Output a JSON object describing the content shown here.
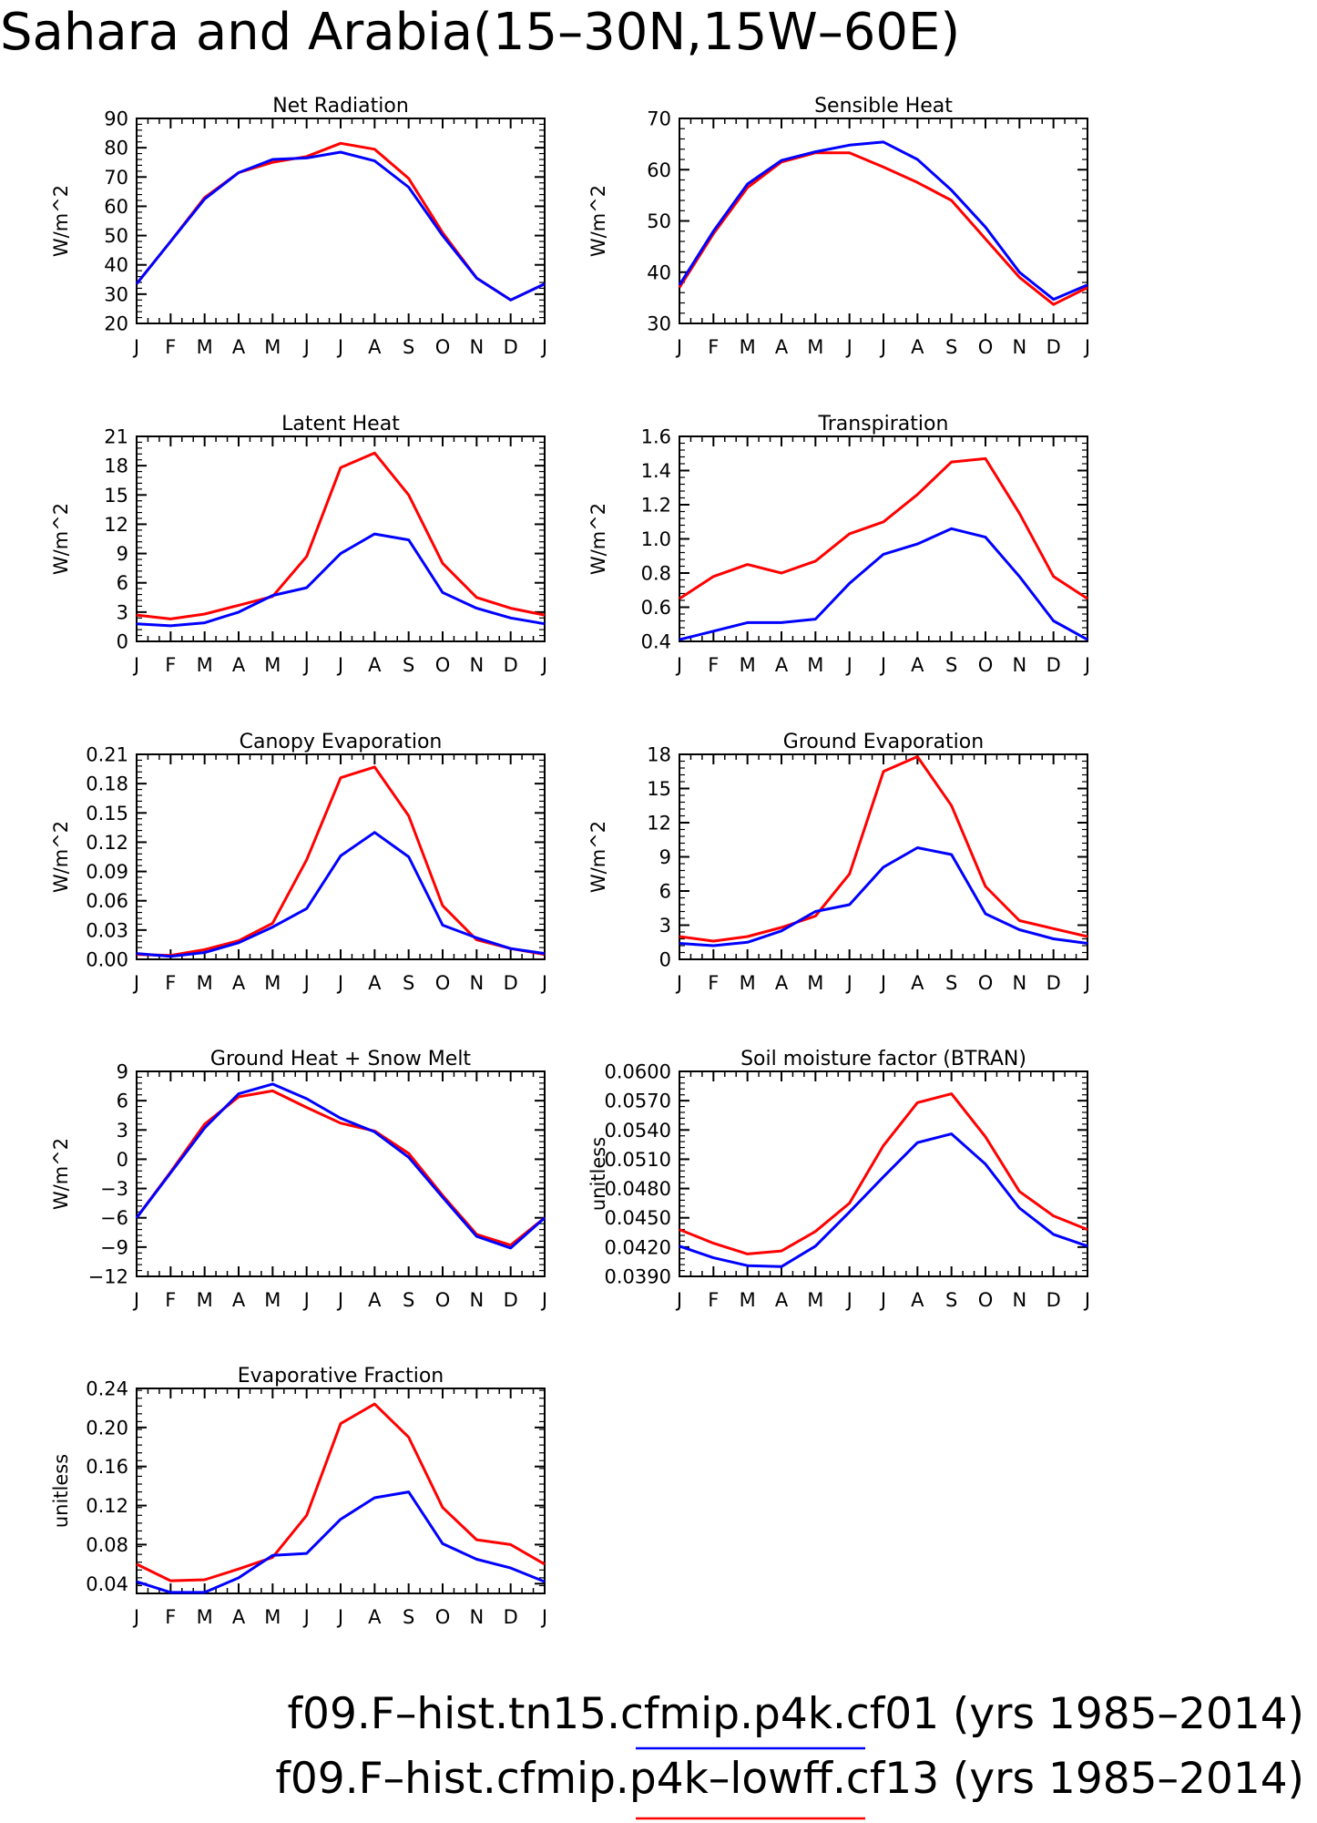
{
  "figure": {
    "title": "Sahara and Arabia(15–30N,15W–60E)",
    "legend": [
      {
        "label": "f09.F–hist.tn15.cfmip.p4k.cf01 (yrs 1985–2014)",
        "color": "#0000ff"
      },
      {
        "label": "f09.F–hist.cfmip.p4k–lowff.cf13 (yrs 1985–2014)",
        "color": "#ff0000"
      }
    ]
  },
  "chart_data": [
    {
      "type": "line",
      "title": "Net Radiation",
      "ylabel": "W/m^2",
      "xlabel": "",
      "categories": [
        "J",
        "F",
        "M",
        "A",
        "M",
        "J",
        "J",
        "A",
        "S",
        "O",
        "N",
        "D",
        "J"
      ],
      "ylim": [
        20,
        90
      ],
      "yticks": [
        "20",
        "30",
        "40",
        "50",
        "60",
        "70",
        "80",
        "90"
      ],
      "yticks_values": [
        20,
        30,
        40,
        50,
        60,
        70,
        80,
        90
      ],
      "series": [
        {
          "color": "#ff0000",
          "values": [
            33.5,
            48,
            63,
            71.5,
            75,
            77,
            81.5,
            79.5,
            69.5,
            51,
            35.5,
            28,
            33.5
          ]
        },
        {
          "color": "#0000ff",
          "values": [
            33.5,
            48,
            62.5,
            71.5,
            76,
            76.5,
            78.5,
            75.5,
            66.5,
            50,
            35.5,
            28,
            33.5
          ]
        }
      ]
    },
    {
      "type": "line",
      "title": "Sensible Heat",
      "ylabel": "W/m^2",
      "xlabel": "",
      "categories": [
        "J",
        "F",
        "M",
        "A",
        "M",
        "J",
        "J",
        "A",
        "S",
        "O",
        "N",
        "D",
        "J"
      ],
      "ylim": [
        30,
        70
      ],
      "yticks": [
        "30",
        "40",
        "50",
        "60",
        "70"
      ],
      "yticks_values": [
        30,
        40,
        50,
        60,
        70
      ],
      "series": [
        {
          "color": "#ff0000",
          "values": [
            37,
            47.5,
            56.5,
            61.5,
            63.3,
            63.3,
            60.5,
            57.5,
            54,
            46.5,
            39,
            33.7,
            37
          ]
        },
        {
          "color": "#0000ff",
          "values": [
            37.5,
            48,
            57.2,
            61.8,
            63.5,
            64.8,
            65.4,
            62,
            56,
            48.8,
            40,
            34.7,
            37.5
          ]
        }
      ]
    },
    {
      "type": "line",
      "title": "Latent Heat",
      "ylabel": "W/m^2",
      "xlabel": "",
      "categories": [
        "J",
        "F",
        "M",
        "A",
        "M",
        "J",
        "J",
        "A",
        "S",
        "O",
        "N",
        "D",
        "J"
      ],
      "ylim": [
        0,
        21
      ],
      "yticks": [
        "0",
        "3",
        "6",
        "9",
        "12",
        "15",
        "18",
        "21"
      ],
      "yticks_values": [
        0,
        3,
        6,
        9,
        12,
        15,
        18,
        21
      ],
      "series": [
        {
          "color": "#ff0000",
          "values": [
            2.7,
            2.3,
            2.8,
            3.7,
            4.6,
            8.7,
            17.8,
            19.3,
            15,
            8,
            4.5,
            3.4,
            2.7
          ]
        },
        {
          "color": "#0000ff",
          "values": [
            1.8,
            1.6,
            1.9,
            3,
            4.7,
            5.5,
            9,
            11,
            10.4,
            5,
            3.4,
            2.4,
            1.8
          ]
        }
      ]
    },
    {
      "type": "line",
      "title": "Transpiration",
      "ylabel": "W/m^2",
      "xlabel": "",
      "categories": [
        "J",
        "F",
        "M",
        "A",
        "M",
        "J",
        "J",
        "A",
        "S",
        "O",
        "N",
        "D",
        "J"
      ],
      "ylim": [
        0.4,
        1.6
      ],
      "yticks": [
        "0.4",
        "0.6",
        "0.8",
        "1.0",
        "1.2",
        "1.4",
        "1.6"
      ],
      "yticks_values": [
        0.4,
        0.6,
        0.8,
        1.0,
        1.2,
        1.4,
        1.6
      ],
      "series": [
        {
          "color": "#ff0000",
          "values": [
            0.65,
            0.78,
            0.85,
            0.8,
            0.87,
            1.03,
            1.1,
            1.26,
            1.45,
            1.47,
            1.15,
            0.78,
            0.65
          ]
        },
        {
          "color": "#0000ff",
          "values": [
            0.41,
            0.46,
            0.51,
            0.51,
            0.53,
            0.74,
            0.91,
            0.97,
            1.06,
            1.01,
            0.78,
            0.52,
            0.41
          ]
        }
      ]
    },
    {
      "type": "line",
      "title": "Canopy Evaporation",
      "ylabel": "W/m^2",
      "xlabel": "",
      "categories": [
        "J",
        "F",
        "M",
        "A",
        "M",
        "J",
        "J",
        "A",
        "S",
        "O",
        "N",
        "D",
        "J"
      ],
      "ylim": [
        0,
        0.21
      ],
      "yticks": [
        "0.00",
        "0.03",
        "0.06",
        "0.09",
        "0.12",
        "0.15",
        "0.18",
        "0.21"
      ],
      "yticks_values": [
        0,
        0.03,
        0.06,
        0.09,
        0.12,
        0.15,
        0.18,
        0.21
      ],
      "series": [
        {
          "color": "#ff0000",
          "values": [
            0.005,
            0.004,
            0.01,
            0.019,
            0.037,
            0.102,
            0.186,
            0.197,
            0.147,
            0.055,
            0.02,
            0.011,
            0.005
          ]
        },
        {
          "color": "#0000ff",
          "values": [
            0.006,
            0.003,
            0.007,
            0.017,
            0.033,
            0.052,
            0.106,
            0.13,
            0.105,
            0.035,
            0.022,
            0.011,
            0.006
          ]
        }
      ]
    },
    {
      "type": "line",
      "title": "Ground Evaporation",
      "ylabel": "W/m^2",
      "xlabel": "",
      "categories": [
        "J",
        "F",
        "M",
        "A",
        "M",
        "J",
        "J",
        "A",
        "S",
        "O",
        "N",
        "D",
        "J"
      ],
      "ylim": [
        0,
        18
      ],
      "yticks": [
        "0",
        "3",
        "6",
        "9",
        "12",
        "15",
        "18"
      ],
      "yticks_values": [
        0,
        3,
        6,
        9,
        12,
        15,
        18
      ],
      "series": [
        {
          "color": "#ff0000",
          "values": [
            2,
            1.6,
            2,
            2.8,
            3.8,
            7.5,
            16.5,
            17.8,
            13.5,
            6.4,
            3.4,
            2.7,
            2
          ]
        },
        {
          "color": "#0000ff",
          "values": [
            1.4,
            1.2,
            1.5,
            2.5,
            4.2,
            4.8,
            8.1,
            9.8,
            9.2,
            4,
            2.6,
            1.8,
            1.4
          ]
        }
      ]
    },
    {
      "type": "line",
      "title": "Ground Heat + Snow Melt",
      "ylabel": "W/m^2",
      "xlabel": "",
      "categories": [
        "J",
        "F",
        "M",
        "A",
        "M",
        "J",
        "J",
        "A",
        "S",
        "O",
        "N",
        "D",
        "J"
      ],
      "ylim": [
        -12,
        9
      ],
      "yticks": [
        "−12",
        "−9",
        "−6",
        "−3",
        "0",
        "3",
        "6",
        "9"
      ],
      "yticks_values": [
        -12,
        -9,
        -6,
        -3,
        0,
        3,
        6,
        9
      ],
      "series": [
        {
          "color": "#ff0000",
          "values": [
            -6,
            -1.3,
            3.6,
            6.4,
            7,
            5.3,
            3.7,
            2.9,
            0.6,
            -3.7,
            -7.7,
            -8.8,
            -6
          ]
        },
        {
          "color": "#0000ff",
          "values": [
            -6,
            -1.4,
            3.2,
            6.7,
            7.7,
            6.2,
            4.2,
            2.8,
            0.2,
            -3.9,
            -7.9,
            -9.1,
            -6
          ]
        }
      ]
    },
    {
      "type": "line",
      "title": "Soil moisture factor (BTRAN)",
      "ylabel": "unitless",
      "xlabel": "",
      "categories": [
        "J",
        "F",
        "M",
        "A",
        "M",
        "J",
        "J",
        "A",
        "S",
        "O",
        "N",
        "D",
        "J"
      ],
      "ylim": [
        0.039,
        0.06
      ],
      "yticks": [
        "0.0390",
        "0.0420",
        "0.0450",
        "0.0480",
        "0.0510",
        "0.0540",
        "0.0570",
        "0.0600"
      ],
      "yticks_values": [
        0.039,
        0.042,
        0.045,
        0.048,
        0.051,
        0.054,
        0.057,
        0.06
      ],
      "series": [
        {
          "color": "#ff0000",
          "values": [
            0.0438,
            0.0424,
            0.0413,
            0.0416,
            0.0436,
            0.0465,
            0.0524,
            0.0568,
            0.0577,
            0.0533,
            0.0477,
            0.0452,
            0.0438
          ]
        },
        {
          "color": "#0000ff",
          "values": [
            0.0421,
            0.0409,
            0.0401,
            0.04,
            0.0421,
            0.0456,
            0.0492,
            0.0527,
            0.0536,
            0.0505,
            0.046,
            0.0433,
            0.0421
          ]
        }
      ]
    },
    {
      "type": "line",
      "title": "Evaporative Fraction",
      "ylabel": "unitless",
      "xlabel": "",
      "categories": [
        "J",
        "F",
        "M",
        "A",
        "M",
        "J",
        "J",
        "A",
        "S",
        "O",
        "N",
        "D",
        "J"
      ],
      "ylim": [
        0.03,
        0.24
      ],
      "yticks": [
        "0.04",
        "0.08",
        "0.12",
        "0.16",
        "0.20",
        "0.24"
      ],
      "yticks_values": [
        0.04,
        0.08,
        0.12,
        0.16,
        0.2,
        0.24
      ],
      "series": [
        {
          "color": "#ff0000",
          "values": [
            0.06,
            0.043,
            0.044,
            0.055,
            0.067,
            0.11,
            0.204,
            0.224,
            0.19,
            0.118,
            0.085,
            0.08,
            0.06
          ]
        },
        {
          "color": "#0000ff",
          "values": [
            0.042,
            0.031,
            0.031,
            0.046,
            0.069,
            0.071,
            0.106,
            0.128,
            0.134,
            0.081,
            0.065,
            0.056,
            0.042
          ]
        }
      ]
    }
  ]
}
